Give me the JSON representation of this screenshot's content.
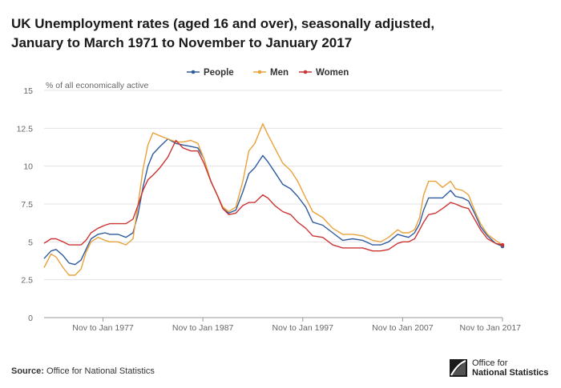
{
  "title_line1": "UK Unemployment rates (aged 16 and over), seasonally adjusted,",
  "title_line2": "January to March 1971 to November to January 2017",
  "footer": {
    "source_label": "Source:",
    "source_text": "Office for National Statistics",
    "logo_line1": "Office for",
    "logo_line2": "National Statistics"
  },
  "chart_data": {
    "type": "line",
    "ylabel": "% of all economically active",
    "ylim": [
      0,
      15
    ],
    "yticks": [
      "15",
      "12.5",
      "10",
      "7.5",
      "5",
      "2.5",
      "0"
    ],
    "xlim": [
      1971.1,
      2017.0
    ],
    "xticks": [
      {
        "x": 1977.0,
        "label": "Nov to Jan 1977"
      },
      {
        "x": 1987.0,
        "label": "Nov to Jan 1987"
      },
      {
        "x": 1997.0,
        "label": "Nov to Jan 1997"
      },
      {
        "x": 2007.0,
        "label": "Nov to Jan 2007"
      },
      {
        "x": 2017.0,
        "label": "Nov to Jan 2017"
      }
    ],
    "legend_position": "top-center",
    "grid": true,
    "series": [
      {
        "name": "People",
        "color": "#2f5a9e",
        "x": [
          1971.1,
          1971.8,
          1972.3,
          1973.0,
          1973.6,
          1974.2,
          1974.8,
          1975.3,
          1975.8,
          1976.5,
          1977.2,
          1977.7,
          1978.5,
          1979.3,
          1980.0,
          1980.5,
          1981.0,
          1981.5,
          1982.0,
          1982.7,
          1983.5,
          1984.3,
          1985.0,
          1985.8,
          1986.5,
          1987.1,
          1987.8,
          1988.5,
          1989.0,
          1989.6,
          1990.3,
          1991.0,
          1991.6,
          1992.2,
          1993.0,
          1993.5,
          1994.2,
          1995.0,
          1995.8,
          1996.5,
          1997.3,
          1998.0,
          1999.0,
          2000.0,
          2001.0,
          2002.0,
          2003.0,
          2004.0,
          2004.8,
          2005.6,
          2006.5,
          2007.0,
          2007.6,
          2008.2,
          2008.7,
          2009.1,
          2009.6,
          2010.3,
          2011.0,
          2011.8,
          2012.3,
          2013.0,
          2013.6,
          2014.2,
          2014.8,
          2015.5,
          2016.3,
          2017.0
        ],
        "y": [
          3.9,
          4.4,
          4.5,
          4.1,
          3.6,
          3.5,
          3.8,
          4.5,
          5.2,
          5.5,
          5.6,
          5.5,
          5.5,
          5.3,
          5.6,
          6.8,
          8.6,
          10.0,
          10.8,
          11.3,
          11.8,
          11.5,
          11.4,
          11.3,
          11.2,
          10.5,
          9.0,
          8.0,
          7.2,
          6.9,
          7.1,
          8.3,
          9.5,
          9.9,
          10.7,
          10.3,
          9.6,
          8.8,
          8.5,
          8.0,
          7.3,
          6.3,
          6.1,
          5.6,
          5.1,
          5.2,
          5.1,
          4.8,
          4.8,
          5.0,
          5.5,
          5.4,
          5.3,
          5.6,
          6.2,
          7.1,
          7.9,
          7.9,
          7.9,
          8.4,
          8.0,
          7.9,
          7.7,
          6.9,
          6.0,
          5.4,
          4.9,
          4.7
        ]
      },
      {
        "name": "Men",
        "color": "#e9a23b",
        "x": [
          1971.1,
          1971.8,
          1972.3,
          1973.0,
          1973.6,
          1974.2,
          1974.8,
          1975.3,
          1975.8,
          1976.5,
          1977.2,
          1977.7,
          1978.5,
          1979.3,
          1980.0,
          1980.5,
          1981.0,
          1981.5,
          1982.0,
          1982.7,
          1983.5,
          1984.3,
          1985.0,
          1985.8,
          1986.5,
          1987.1,
          1987.8,
          1988.5,
          1989.0,
          1989.6,
          1990.3,
          1991.0,
          1991.6,
          1992.2,
          1993.0,
          1993.5,
          1994.2,
          1995.0,
          1995.8,
          1996.5,
          1997.3,
          1998.0,
          1999.0,
          2000.0,
          2001.0,
          2002.0,
          2003.0,
          2004.0,
          2004.8,
          2005.6,
          2006.5,
          2007.0,
          2007.6,
          2008.2,
          2008.7,
          2009.1,
          2009.6,
          2010.3,
          2011.0,
          2011.8,
          2012.3,
          2013.0,
          2013.6,
          2014.2,
          2014.8,
          2015.5,
          2016.3,
          2017.0
        ],
        "y": [
          3.3,
          4.2,
          4.0,
          3.3,
          2.8,
          2.8,
          3.2,
          4.3,
          5.0,
          5.3,
          5.1,
          5.0,
          5.0,
          4.8,
          5.2,
          7.4,
          9.8,
          11.4,
          12.2,
          12.0,
          11.8,
          11.6,
          11.6,
          11.7,
          11.5,
          10.5,
          9.0,
          8.0,
          7.3,
          7.0,
          7.3,
          9.0,
          11.0,
          11.5,
          12.8,
          12.1,
          11.2,
          10.2,
          9.7,
          9.0,
          7.9,
          7.0,
          6.6,
          5.9,
          5.5,
          5.5,
          5.4,
          5.1,
          5.0,
          5.3,
          5.8,
          5.6,
          5.6,
          5.8,
          6.6,
          8.1,
          9.0,
          9.0,
          8.6,
          9.0,
          8.5,
          8.4,
          8.1,
          7.1,
          6.2,
          5.5,
          5.1,
          4.8
        ]
      },
      {
        "name": "Women",
        "color": "#cc3333",
        "x": [
          1971.1,
          1971.8,
          1972.3,
          1973.0,
          1973.6,
          1974.2,
          1974.8,
          1975.3,
          1975.8,
          1976.5,
          1977.2,
          1977.7,
          1978.5,
          1979.3,
          1980.0,
          1980.5,
          1981.0,
          1981.5,
          1982.0,
          1982.7,
          1983.5,
          1984.3,
          1985.0,
          1985.8,
          1986.5,
          1987.1,
          1987.8,
          1988.5,
          1989.0,
          1989.6,
          1990.3,
          1991.0,
          1991.6,
          1992.2,
          1993.0,
          1993.5,
          1994.2,
          1995.0,
          1995.8,
          1996.5,
          1997.3,
          1998.0,
          1999.0,
          2000.0,
          2001.0,
          2002.0,
          2003.0,
          2004.0,
          2004.8,
          2005.6,
          2006.5,
          2007.0,
          2007.6,
          2008.2,
          2008.7,
          2009.1,
          2009.6,
          2010.3,
          2011.0,
          2011.8,
          2012.3,
          2013.0,
          2013.6,
          2014.2,
          2014.8,
          2015.5,
          2016.3,
          2017.0
        ],
        "y": [
          4.9,
          5.2,
          5.2,
          5.0,
          4.8,
          4.8,
          4.8,
          5.1,
          5.6,
          5.9,
          6.1,
          6.2,
          6.2,
          6.2,
          6.5,
          7.4,
          8.4,
          9.1,
          9.4,
          9.9,
          10.6,
          11.7,
          11.2,
          11.0,
          11.0,
          10.2,
          9.0,
          8.0,
          7.2,
          6.8,
          6.9,
          7.4,
          7.6,
          7.6,
          8.1,
          7.9,
          7.4,
          7.0,
          6.8,
          6.3,
          5.9,
          5.4,
          5.3,
          4.8,
          4.6,
          4.6,
          4.6,
          4.4,
          4.4,
          4.5,
          4.9,
          5.0,
          5.0,
          5.2,
          5.8,
          6.3,
          6.8,
          6.9,
          7.2,
          7.6,
          7.5,
          7.3,
          7.2,
          6.5,
          5.8,
          5.2,
          4.9,
          4.8
        ]
      }
    ]
  }
}
